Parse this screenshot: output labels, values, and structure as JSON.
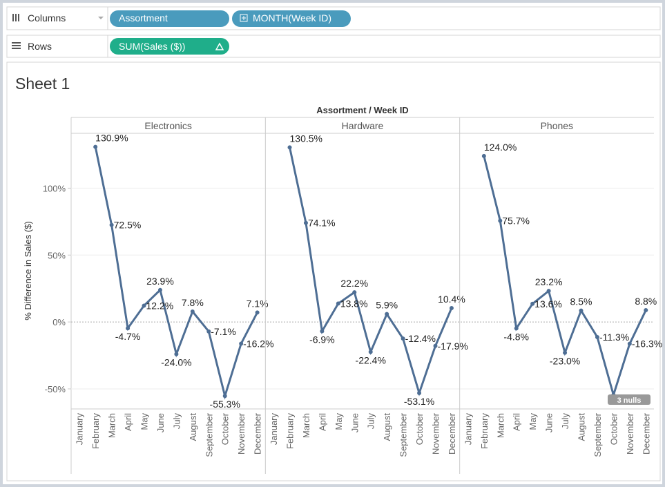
{
  "shelves": {
    "columns": {
      "label": "Columns",
      "pills": [
        "Assortment",
        "MONTH(Week ID)"
      ]
    },
    "rows": {
      "label": "Rows",
      "pills": [
        "SUM(Sales ($))"
      ]
    }
  },
  "chart_data": {
    "type": "line",
    "title": "Sheet 1",
    "header": "Assortment / Week ID",
    "y_label": "% Difference in Sales ($)",
    "categories": [
      "January",
      "February",
      "March",
      "April",
      "May",
      "June",
      "July",
      "August",
      "September",
      "October",
      "November",
      "December"
    ],
    "series": [
      {
        "name": "Electronics",
        "color": "#4e6e94",
        "values": [
          null,
          130.9,
          72.5,
          -4.7,
          12.2,
          23.9,
          -24.0,
          7.8,
          -7.1,
          -55.3,
          -16.2,
          7.1
        ],
        "value_labels": [
          null,
          "130.9%",
          "72.5%",
          "-4.7%",
          "12.2%",
          "23.9%",
          "-24.0%",
          "7.8%",
          "-7.1%",
          "-55.3%",
          "-16.2%",
          "7.1%"
        ]
      },
      {
        "name": "Hardware",
        "color": "#4e6e94",
        "values": [
          null,
          130.5,
          74.1,
          -6.9,
          13.8,
          22.2,
          -22.4,
          5.9,
          -12.4,
          -53.1,
          -17.9,
          10.4
        ],
        "value_labels": [
          null,
          "130.5%",
          "74.1%",
          "-6.9%",
          "13.8%",
          "22.2%",
          "-22.4%",
          "5.9%",
          "-12.4%",
          "-53.1%",
          "-17.9%",
          "10.4%"
        ]
      },
      {
        "name": "Phones",
        "color": "#4e6e94",
        "values": [
          null,
          124.0,
          75.7,
          -4.8,
          13.6,
          23.2,
          -23.0,
          8.5,
          -11.3,
          -54.5,
          -16.3,
          8.8
        ],
        "value_labels": [
          null,
          "124.0%",
          "75.7%",
          "-4.8%",
          "13.6%",
          "23.2%",
          "-23.0%",
          "8.5%",
          "-11.3%",
          null,
          "-16.3%",
          "8.8%"
        ]
      }
    ],
    "ylim": [
      -65,
      141
    ],
    "yticks": [
      {
        "value": -50,
        "label": "-50%"
      },
      {
        "value": 0,
        "label": "0%"
      },
      {
        "value": 50,
        "label": "50%"
      },
      {
        "value": 100,
        "label": "100%"
      }
    ],
    "grid": true,
    "nulls_indicator": "3 nulls"
  }
}
